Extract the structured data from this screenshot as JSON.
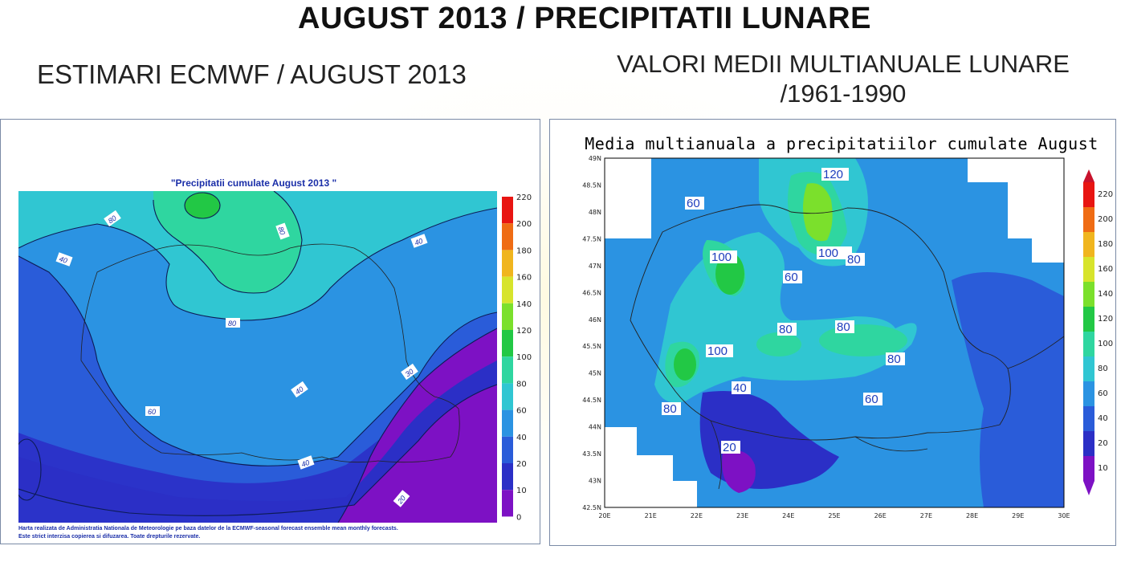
{
  "header": {
    "title": "AUGUST 2013 / PRECIPITATII LUNARE",
    "left_subtitle": "ESTIMARI ECMWF / AUGUST 2013",
    "right_subtitle_line1": "VALORI MEDII MULTIANUALE LUNARE",
    "right_subtitle_line2": "/1961-1990"
  },
  "left_map": {
    "title": "\"Precipitatii cumulate August 2013 \"",
    "credit_line1": "Harta realizata de Administratia Nationala de Meteorologie pe baza datelor de la ECMWF-seasonal forecast ensemble mean monthly forecasts.",
    "credit_line2": "Este strict interzisa copierea si difuzarea. Toate drepturile rezervate.",
    "colorbar_labels": [
      "220",
      "200",
      "180",
      "160",
      "140",
      "120",
      "100",
      "80",
      "60",
      "40",
      "20",
      "10",
      "0"
    ],
    "contour_labels": [
      "80",
      "80",
      "40",
      "40",
      "80",
      "60",
      "40",
      "30",
      "40",
      "20",
      "20"
    ]
  },
  "right_map": {
    "title": "Media multianuala a precipitatiilor cumulate August",
    "lat_ticks": [
      "49N",
      "48.5N",
      "48N",
      "47.5N",
      "47N",
      "46.5N",
      "46N",
      "45.5N",
      "45N",
      "44.5N",
      "44N",
      "43.5N",
      "43N",
      "42.5N"
    ],
    "lon_ticks": [
      "20E",
      "21E",
      "22E",
      "23E",
      "24E",
      "25E",
      "26E",
      "27E",
      "28E",
      "29E",
      "30E"
    ],
    "colorbar_labels": [
      "220",
      "200",
      "180",
      "160",
      "140",
      "120",
      "100",
      "80",
      "60",
      "40",
      "20",
      "10"
    ],
    "contour_labels": [
      "100",
      "120",
      "60",
      "80",
      "100",
      "80",
      "100",
      "60",
      "60",
      "80",
      "80",
      "80",
      "100",
      "80",
      "80",
      "60",
      "40",
      "80",
      "20"
    ]
  },
  "colors": {
    "scale": [
      "#7d11c4",
      "#2b2fc6",
      "#2a5cd9",
      "#2b93e2",
      "#30c6d2",
      "#2fd6a0",
      "#22c845",
      "#7be02c",
      "#d7e42c",
      "#f0b51e",
      "#ef6c14",
      "#e81512",
      "#c8122c"
    ]
  }
}
